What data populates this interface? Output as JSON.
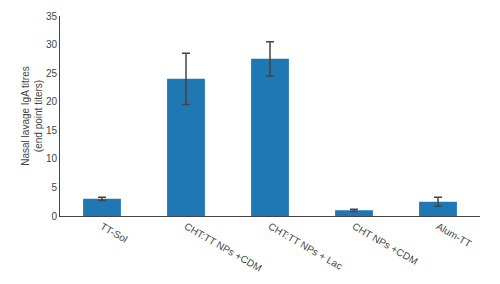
{
  "chart_data": {
    "type": "bar",
    "ylabel": "Nasal lavage IgA titres\n(end point titers)",
    "categories": [
      "TT-Sol",
      "CHT:TT NPs +CDM",
      "CHT:TT NPs + Lac",
      "CHT NPs +CDM",
      "Alum-TT"
    ],
    "values": [
      3.0,
      24.0,
      27.5,
      1.0,
      2.5
    ],
    "errors": [
      0.3,
      4.5,
      3.0,
      0.2,
      0.8
    ],
    "ylim": [
      0,
      35
    ],
    "yticks": [
      0,
      5,
      10,
      15,
      20,
      25,
      30,
      35
    ],
    "grid": false
  }
}
